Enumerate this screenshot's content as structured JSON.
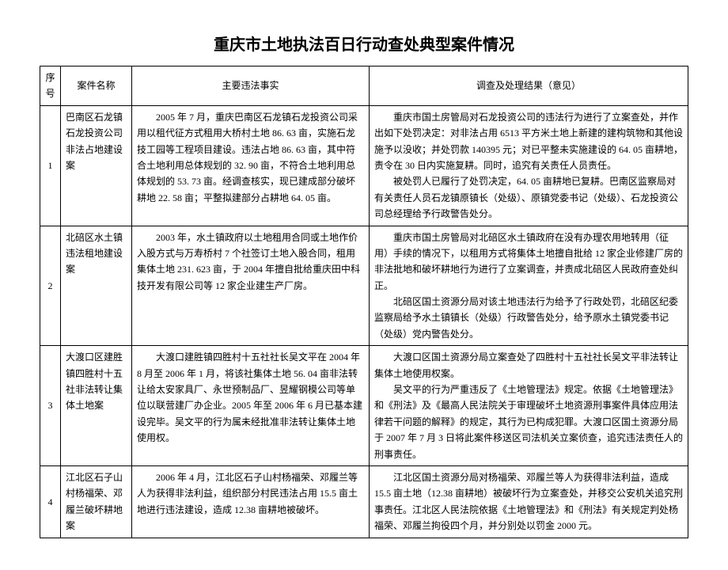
{
  "title": "重庆市土地执法百日行动查处典型案件情况",
  "title_fontsize": "20px",
  "body_fontsize": "12px",
  "columns": {
    "num": "序号",
    "name": "案件名称",
    "fact": "主要违法事实",
    "result": "调查及处理结果（意见）"
  },
  "rows": [
    {
      "num": "1",
      "name": "巴南区石龙镇石龙投资公司非法占地建设案",
      "fact_p1": "2005 年 7 月，重庆巴南区石龙镇石龙投资公司采用以租代征方式租用大桥村土地 86. 63 亩，实施石龙技工园等工程项目建设。违法占地 86. 63 亩，其中符合土地利用总体规划的 32. 90 亩，不符合土地利用总体规划的 53. 73 亩。经调查核实，现已建成部分破坏耕地 22. 58 亩；平整拟建部分占耕地 64. 05 亩。",
      "res_p1": "重庆市国土房管局对石龙投资公司的违法行为进行了立案查处，并作出如下处罚决定：对非法占用 6513 平方米土地上新建的建构筑物和其他设施予以没收；并处罚款 140395 元；对已平整未实施建设的 64. 05 亩耕地，责令在 30 日内实施复耕。同时，追究有关责任人员责任。",
      "res_p2": "被处罚人已履行了处罚决定，64. 05 亩耕地已复耕。巴南区监察局对有关责任人员石龙镇原镇长（处级）、原镇党委书记（处级）、石龙投资公司总经理给予行政警告处分。"
    },
    {
      "num": "2",
      "name": "北碚区水土镇违法租地建设案",
      "fact_p1": "2003 年，水土镇政府以土地租用合同或土地作价入股方式与万寿桥村 7 个社签订土地入股合同，租用集体土地 231. 623 亩，于 2004 年擅自批给重庆田中科技开发有限公司等 12 家企业建生产厂房。",
      "res_p1": "重庆市国土房管局对北碚区水土镇政府在没有办理农用地转用（征用）手续的情况下，以租用方式将集体土地擅自批给 12 家企业修建厂房的非法批地和破坏耕地行为进行了立案调查，并责成北碚区人民政府查处纠正。",
      "res_p2": "北碚区国土资源分局对该土地违法行为给予了行政处罚，北碚区纪委监察局给予水土镇镇长（处级）行政警告处分，给予原水土镇党委书记（处级）党内警告处分。"
    },
    {
      "num": "3",
      "name": "大渡口区建胜镇四胜村十五社非法转让集体土地案",
      "fact_p1": "大渡口建胜镇四胜村十五社社长吴文平在 2004 年 8 月至 2006 年 1 月，将该社集体土地 56. 04 亩非法转让给太安家具厂、永世预制品厂、昱耀钢模公司等单位以联营建厂办企业。2005 年至 2006 年 6 月已基本建设完毕。吴文平的行为属未经批准非法转让集体土地使用权。",
      "res_p1": "大渡口区国土资源分局立案查处了四胜村十五社社长吴文平非法转让集体土地使用权案。",
      "res_p2": "吴文平的行为严重违反了《土地管理法》规定。依据《土地管理法》和《刑法》及《最高人民法院关于审理破坏土地资源刑事案件具体应用法律若干问题的解释》的规定，其行为已构成犯罪。大渡口区国土资源分局于 2007 年 7 月 3 日将此案件移送区司法机关立案侦查，追究违法责任人的刑事责任。"
    },
    {
      "num": "4",
      "name": "江北区石子山村杨福荣、邓履兰破坏耕地案",
      "fact_p1": "2006 年 4 月，江北区石子山村杨福荣、邓履兰等人为获得非法利益，组织部分村民违法占用 15.5 亩土地进行违法建设，造成 12.38 亩耕地被破坏。",
      "res_p1": "江北区国土资源分局对杨福荣、邓履兰等人为获得非法利益，造成 15.5 亩土地（12.38 亩耕地）被破坏行为立案查处，并移交公安机关追究刑事责任。江北区人民法院依据《土地管理法》和《刑法》有关规定判处杨福荣、邓履兰拘役四个月，并分别处以罚金 2000 元。"
    }
  ]
}
